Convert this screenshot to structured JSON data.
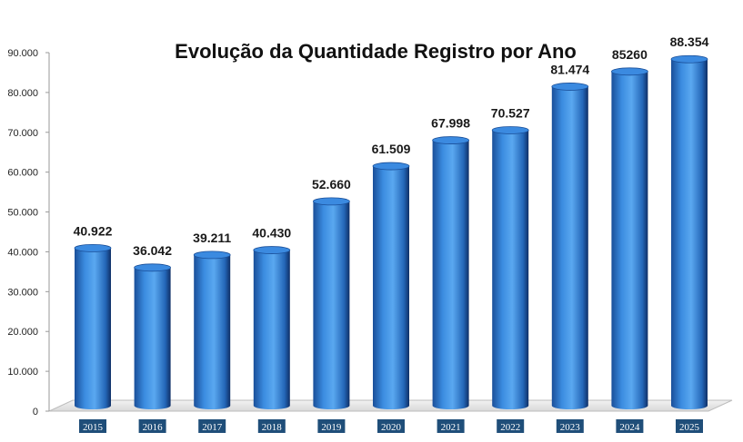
{
  "chart_data": {
    "type": "bar",
    "title": "Evolução da Quantidade Registro por Ano",
    "categories": [
      "2015",
      "2016",
      "2017",
      "2018",
      "2019",
      "2020",
      "2021",
      "2022",
      "2023",
      "2024",
      "2025"
    ],
    "values": [
      40922,
      36042,
      39211,
      40430,
      52660,
      61509,
      67998,
      70527,
      81474,
      85260,
      88354
    ],
    "data_labels": [
      "40.922",
      "36.042",
      "39.211",
      "40.430",
      "52.660",
      "61.509",
      "67.998",
      "70.527",
      "81.474",
      "85260",
      "88.354"
    ],
    "yticks": [
      "0",
      "10.000",
      "20.000",
      "30.000",
      "40.000",
      "50.000",
      "60.000",
      "70.000",
      "80.000",
      "90.000"
    ],
    "ylim": [
      0,
      90000
    ],
    "grid": false,
    "legend": "none",
    "bar_shape": "cylinder-3d",
    "colors": {
      "bar_main": "#2f7fd6",
      "bar_light": "#5aa8f0",
      "bar_dark": "#123a78",
      "bar_top": "#3b8ae0",
      "tick_label_bg": "#1f4e79",
      "floor": "#e6e6e6"
    }
  }
}
